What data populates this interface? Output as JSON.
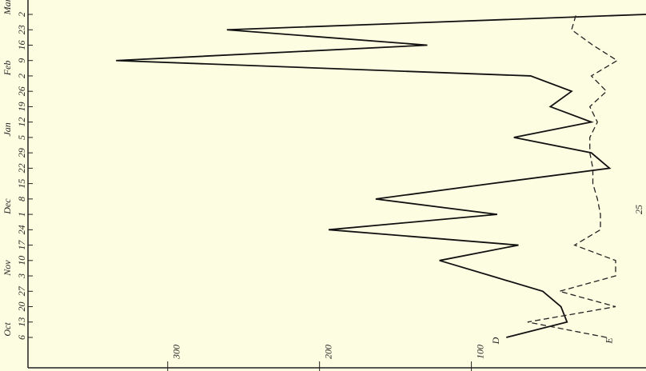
{
  "chart_data": {
    "type": "line",
    "categories": [
      "6",
      "13",
      "20",
      "27",
      "3",
      "10",
      "17",
      "24",
      "1",
      "8",
      "15",
      "22",
      "29",
      "5",
      "12",
      "19",
      "26",
      "2",
      "9",
      "16",
      "23",
      "2"
    ],
    "month_labels": [
      "Oct",
      null,
      null,
      null,
      "Nov",
      null,
      null,
      null,
      "Dec",
      null,
      null,
      null,
      null,
      "Jan",
      null,
      null,
      null,
      "Feb",
      null,
      null,
      null,
      "Mar"
    ],
    "series": [
      {
        "name": "D",
        "color": "#111111",
        "dash": false,
        "values": [
          77,
          37,
          41,
          53,
          87,
          121,
          69,
          194,
          83,
          163,
          87,
          9,
          21,
          72,
          21,
          48,
          34,
          61,
          334,
          129,
          261,
          -15
        ]
      },
      {
        "name": "E",
        "color": "#222222",
        "dash": true,
        "values": [
          11,
          63,
          5,
          42,
          5,
          5,
          32,
          15,
          15,
          17,
          20,
          20,
          22,
          22,
          17,
          22,
          11,
          21,
          4,
          20,
          34,
          31
        ]
      }
    ],
    "xlim": [
      -15,
      392
    ],
    "xticks": [
      100,
      200,
      300
    ],
    "annotation": "25"
  }
}
